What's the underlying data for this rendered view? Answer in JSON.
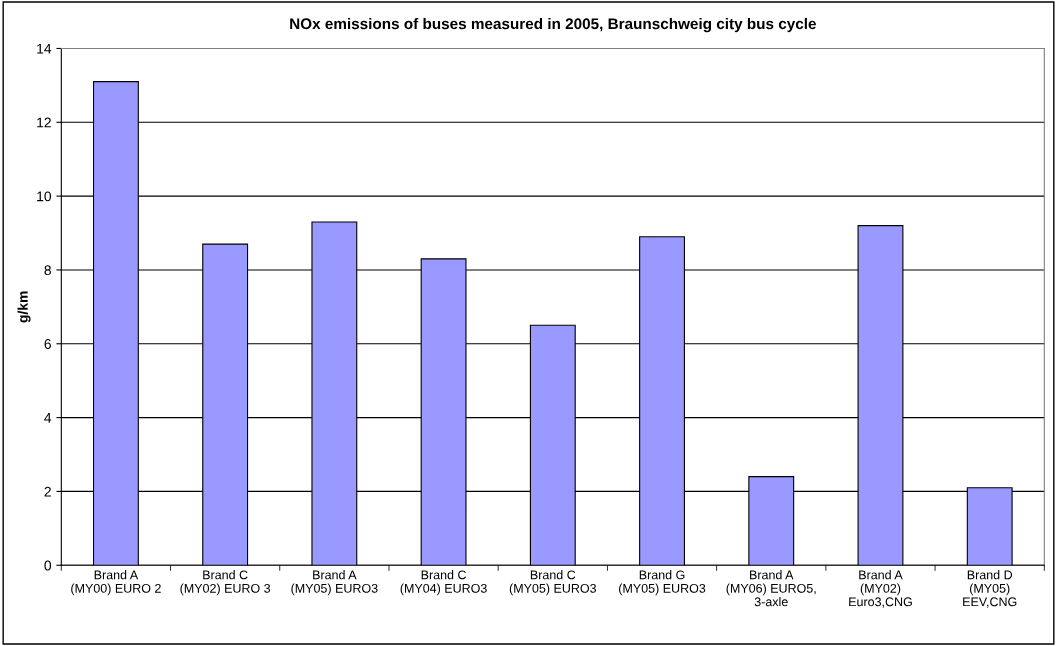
{
  "chart_data": {
    "type": "bar",
    "title": "NOx emissions of buses measured in 2005, Braunschweig city bus cycle",
    "ylabel": "g/km",
    "categories": [
      "Brand A\n(MY00) EURO 2",
      "Brand C\n(MY02) EURO 3",
      "Brand A\n(MY05) EURO3",
      "Brand C\n(MY04) EURO3",
      "Brand C\n(MY05) EURO3",
      "Brand G\n(MY05) EURO3",
      "Brand A\n(MY06) EURO5,\n3-axle",
      "Brand A\n(MY02)\nEuro3,CNG",
      "Brand D\n(MY05)\nEEV,CNG"
    ],
    "values": [
      13.1,
      8.7,
      9.3,
      8.3,
      6.5,
      8.9,
      2.4,
      9.2,
      2.1
    ],
    "color": "#9999ff",
    "ylim": [
      0,
      14
    ],
    "yticks": [
      0,
      2,
      4,
      6,
      8,
      10,
      12,
      14
    ],
    "grid": "y",
    "legend": false
  }
}
